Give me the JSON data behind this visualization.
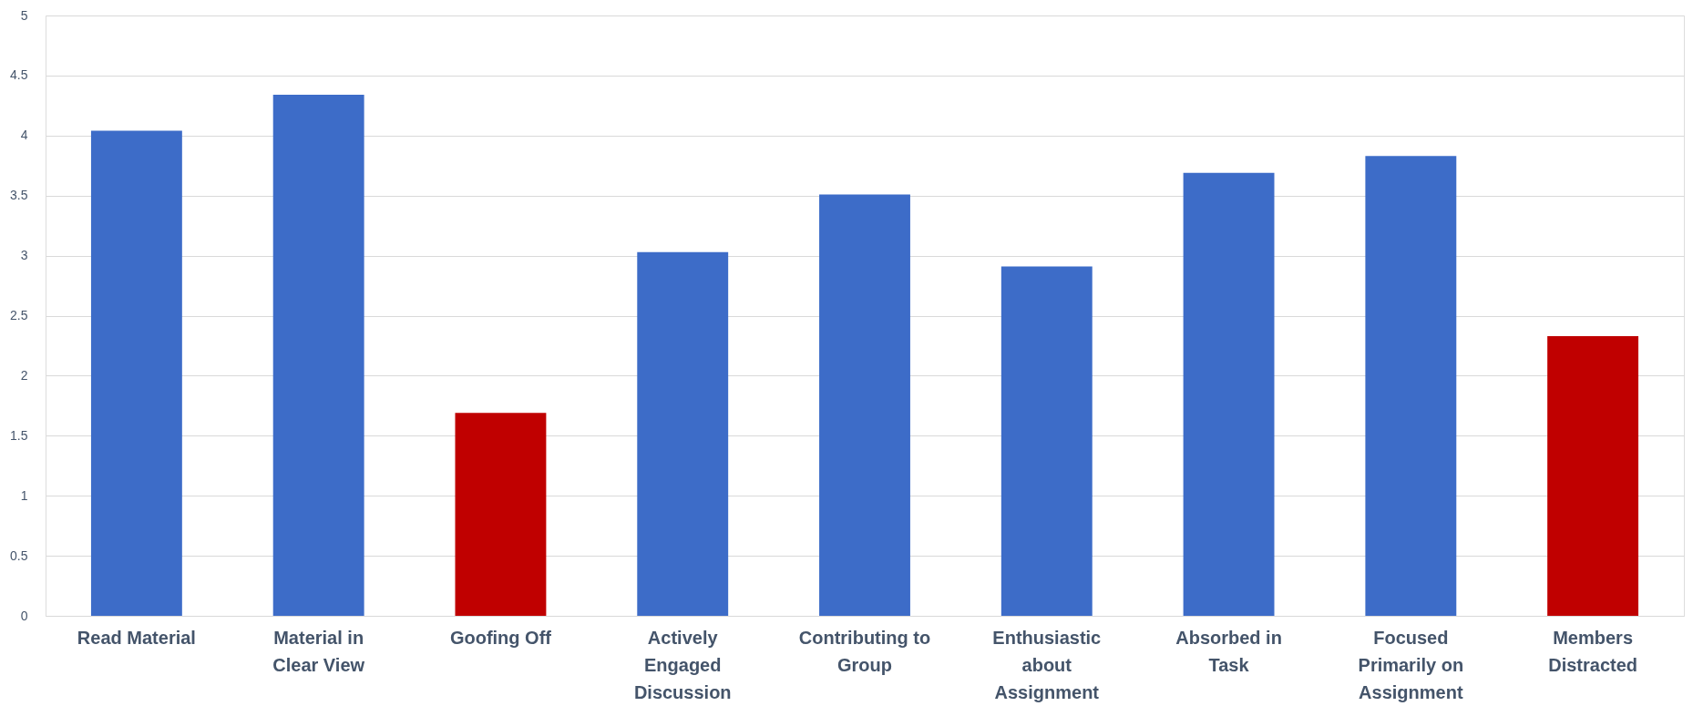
{
  "chart_data": {
    "type": "bar",
    "categories": [
      "Read Material",
      "Material in Clear View",
      "Goofing Off",
      "Actively Engaged Discussion",
      "Contributing to Group",
      "Enthusiastic about Assignment",
      "Absorbed in Task",
      "Focused Primarily on Assignment",
      "Members Distracted"
    ],
    "values": [
      4.04,
      4.34,
      1.69,
      3.03,
      3.51,
      2.91,
      3.69,
      3.83,
      2.33
    ],
    "colors": [
      "#3d6cc8",
      "#3d6cc8",
      "#c00000",
      "#3d6cc8",
      "#3d6cc8",
      "#3d6cc8",
      "#3d6cc8",
      "#3d6cc8",
      "#c00000"
    ],
    "ylim": [
      0,
      5
    ],
    "yticks": [
      0,
      0.5,
      1,
      1.5,
      2,
      2.5,
      3,
      3.5,
      4,
      4.5,
      5
    ],
    "grid": "y"
  }
}
